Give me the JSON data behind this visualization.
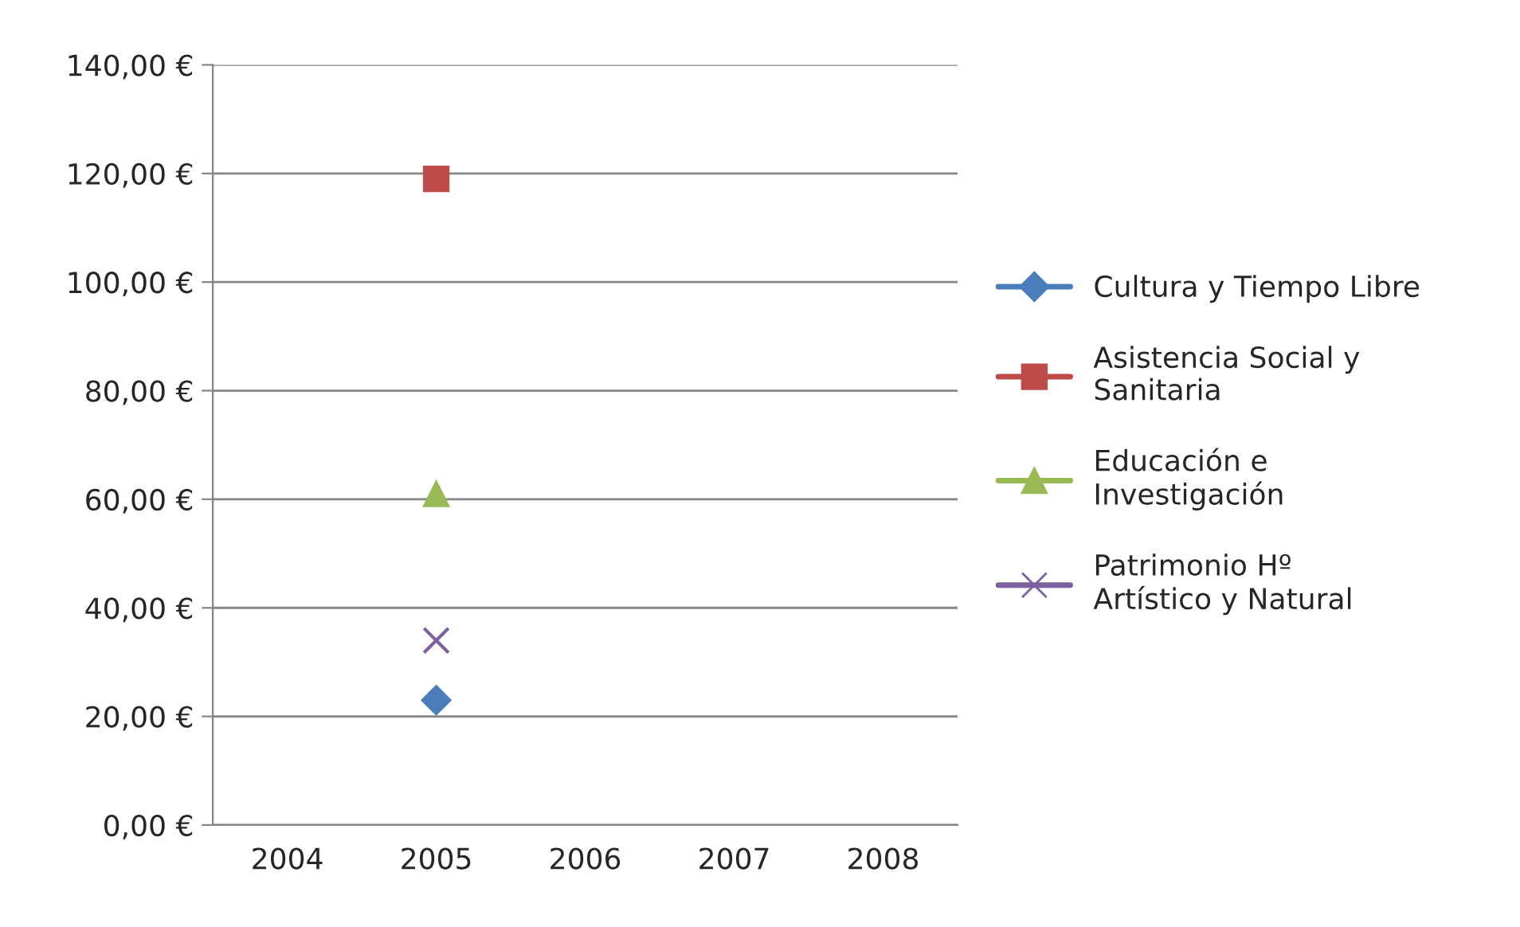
{
  "chart_data": {
    "type": "line",
    "categories": [
      "2004",
      "2005",
      "2006",
      "2007",
      "2008"
    ],
    "series": [
      {
        "name": "Cultura y Tiempo Libre",
        "color": "#4a7ebb",
        "marker": "diamond",
        "values": [
          null,
          23,
          null,
          null,
          null
        ]
      },
      {
        "name": "Asistencia Social y Sanitaria",
        "color": "#be4b48",
        "marker": "square",
        "values": [
          null,
          119,
          null,
          null,
          null
        ]
      },
      {
        "name": "Educación e Investigación",
        "color": "#98b954",
        "marker": "triangle",
        "values": [
          null,
          61,
          null,
          null,
          null
        ]
      },
      {
        "name": "Patrimonio Hº Artístico y Natural",
        "color": "#7d60a0",
        "marker": "cross",
        "values": [
          null,
          34,
          null,
          null,
          null
        ]
      }
    ],
    "ylim": [
      0,
      140
    ],
    "yticks": [
      {
        "value": 0,
        "label": "0,00 €"
      },
      {
        "value": 20,
        "label": "20,00 €"
      },
      {
        "value": 40,
        "label": "40,00 €"
      },
      {
        "value": 60,
        "label": "60,00 €"
      },
      {
        "value": 80,
        "label": "80,00 €"
      },
      {
        "value": 100,
        "label": "100,00 €"
      },
      {
        "value": 120,
        "label": "120,00 €"
      },
      {
        "value": 140,
        "label": "140,00 €"
      }
    ],
    "grid": "y",
    "legend": "right",
    "line_style": "solid"
  }
}
